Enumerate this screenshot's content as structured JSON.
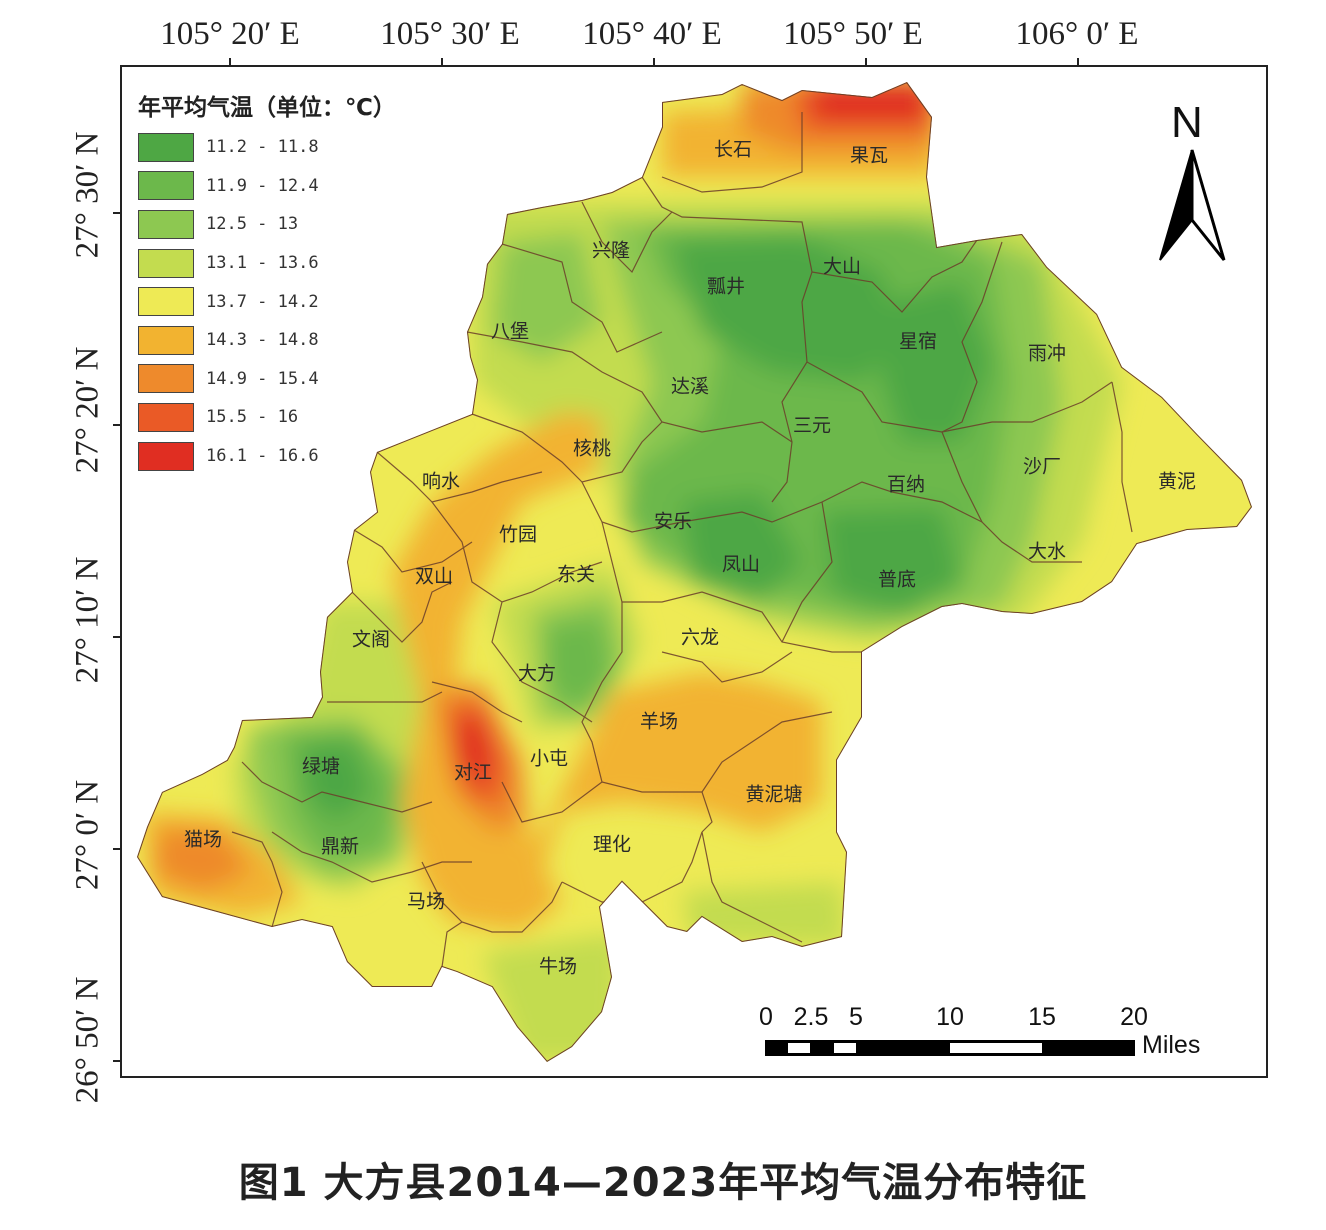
{
  "axes": {
    "longitude_labels": [
      "105° 20′ E",
      "105° 30′ E",
      "105° 40′ E",
      "105° 50′ E",
      "106° 0′ E"
    ],
    "latitude_labels": [
      "27° 30′ N",
      "27° 20′ N",
      "27° 10′ N",
      "27° 0′ N",
      "26° 50′ N"
    ]
  },
  "legend": {
    "title": "年平均气温（单位：℃）",
    "classes": [
      {
        "label": "11.2 - 11.8",
        "color": "#4ea744"
      },
      {
        "label": "11.9 - 12.4",
        "color": "#6cb84b"
      },
      {
        "label": "12.5 - 13",
        "color": "#8dc851"
      },
      {
        "label": "13.1 - 13.6",
        "color": "#c3dc4f"
      },
      {
        "label": "13.7 - 14.2",
        "color": "#eeea55"
      },
      {
        "label": "14.3 - 14.8",
        "color": "#f2b330"
      },
      {
        "label": "14.9 - 15.4",
        "color": "#ee8a2c"
      },
      {
        "label": "15.5 - 16",
        "color": "#ea5a26"
      },
      {
        "label": "16.1 - 16.6",
        "color": "#e02e22"
      }
    ]
  },
  "towns": [
    {
      "name": "长石"
    },
    {
      "name": "果瓦"
    },
    {
      "name": "兴隆"
    },
    {
      "name": "瓢井"
    },
    {
      "name": "大山"
    },
    {
      "name": "八堡"
    },
    {
      "name": "星宿"
    },
    {
      "name": "雨冲"
    },
    {
      "name": "达溪"
    },
    {
      "name": "三元"
    },
    {
      "name": "核桃"
    },
    {
      "name": "响水"
    },
    {
      "name": "沙厂"
    },
    {
      "name": "黄泥"
    },
    {
      "name": "百纳"
    },
    {
      "name": "安乐"
    },
    {
      "name": "竹园"
    },
    {
      "name": "大水"
    },
    {
      "name": "双山"
    },
    {
      "name": "东关"
    },
    {
      "name": "凤山"
    },
    {
      "name": "普底"
    },
    {
      "name": "文阁"
    },
    {
      "name": "六龙"
    },
    {
      "name": "大方"
    },
    {
      "name": "羊场"
    },
    {
      "name": "绿塘"
    },
    {
      "name": "对江"
    },
    {
      "name": "小屯"
    },
    {
      "name": "黄泥塘"
    },
    {
      "name": "猫场"
    },
    {
      "name": "鼎新"
    },
    {
      "name": "理化"
    },
    {
      "name": "马场"
    },
    {
      "name": "牛场"
    }
  ],
  "north_arrow": {
    "letter": "N"
  },
  "scale_bar": {
    "ticks": [
      "0",
      "2.5",
      "5",
      "10",
      "15",
      "20"
    ],
    "unit": "Miles"
  },
  "caption": "图1  大方县2014—2023年平均气温分布特征"
}
